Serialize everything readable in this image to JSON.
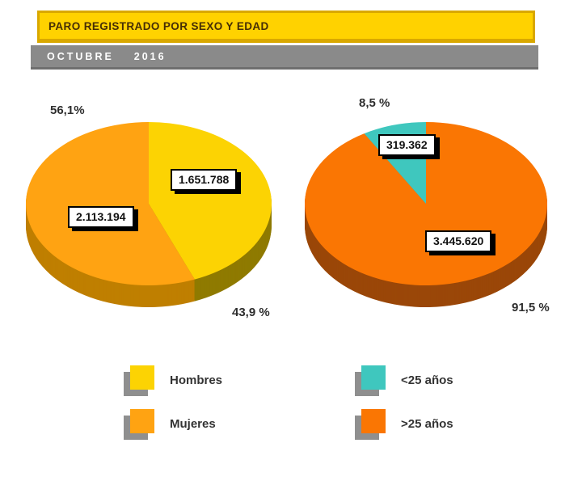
{
  "header": {
    "title": "PARO REGISTRADO POR SEXO Y EDAD",
    "subtitle": "OCTUBRE  2016"
  },
  "colors": {
    "title_bar_bg": "#FFD200",
    "title_bar_border": "#D9A800",
    "title_text": "#462E05",
    "subtitle_bar_bg": "#8A8A8A",
    "subtitle_text": "#FFFFFF",
    "hombres": "#FCD303",
    "mujeres": "#FFA312",
    "under25": "#3FC7BE",
    "over25": "#FA7603",
    "legend_shadow": "#8F8F8F",
    "label_box_bg": "#FFFFFF",
    "label_box_border": "#000000"
  },
  "chart_data": [
    {
      "type": "pie",
      "id": "paro-por-sexo",
      "start_angle": 90,
      "direction": "clockwise",
      "style": "3d",
      "slices": [
        {
          "label": "Hombres",
          "value": 1651788,
          "pct": 43.9,
          "value_label": "1.651.788",
          "pct_label": "43,9 %",
          "color": "#FCD303",
          "side_color": "#8F7A00"
        },
        {
          "label": "Mujeres",
          "value": 2113194,
          "pct": 56.1,
          "value_label": "2.113.194",
          "pct_label": "56,1%",
          "color": "#FFA312",
          "side_color": "#BF7F00"
        }
      ]
    },
    {
      "type": "pie",
      "id": "paro-por-edad",
      "start_angle": 90,
      "direction": "clockwise",
      "style": "3d",
      "slices": [
        {
          "label": ">25 años",
          "value": 3445620,
          "pct": 91.5,
          "value_label": "3.445.620",
          "pct_label": "91,5 %",
          "color": "#FA7603",
          "side_color": "#9A4708"
        },
        {
          "label": "<25 años",
          "value": 319362,
          "pct": 8.5,
          "value_label": "319.362",
          "pct_label": "8,5 %",
          "color": "#3FC7BE",
          "side_color": "#2E938C"
        }
      ]
    }
  ],
  "legend": {
    "left": [
      {
        "label": "Hombres",
        "color": "#FCD303"
      },
      {
        "label": "Mujeres",
        "color": "#FFA312"
      }
    ],
    "right": [
      {
        "label": "<25 años",
        "color": "#3FC7BE"
      },
      {
        "label": ">25 años",
        "color": "#FA7603"
      }
    ]
  }
}
